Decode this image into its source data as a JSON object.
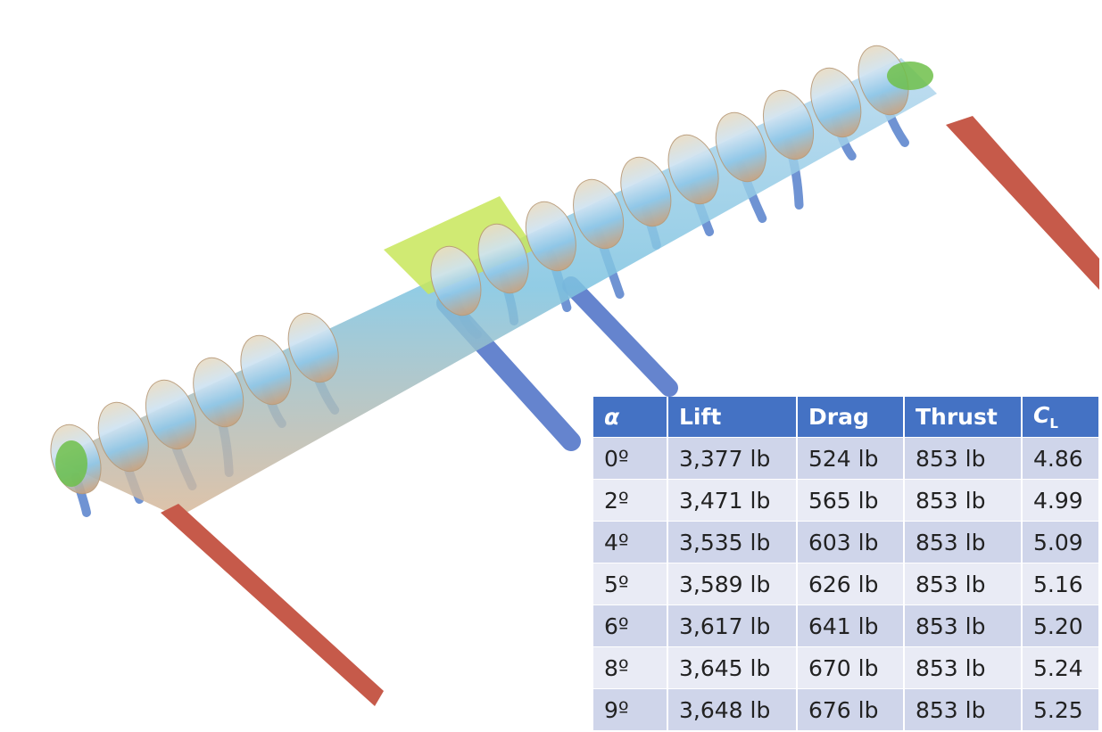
{
  "table": {
    "header": [
      "α",
      "Lift",
      "Drag",
      "Thrust",
      {
        "base": "C",
        "subscript": "L"
      }
    ],
    "rows": [
      [
        "0º",
        "3,377 lb",
        "524 lb",
        "853 lb",
        "4.86"
      ],
      [
        "2º",
        "3,471 lb",
        "565 lb",
        "853 lb",
        "4.99"
      ],
      [
        "4º",
        "3,535 lb",
        "603 lb",
        "853 lb",
        "5.09"
      ],
      [
        "5º",
        "3,589 lb",
        "626 lb",
        "853 lb",
        "5.16"
      ],
      [
        "6º",
        "3,617 lb",
        "641 lb",
        "853 lb",
        "5.20"
      ],
      [
        "8º",
        "3,645 lb",
        "670 lb",
        "853 lb",
        "5.24"
      ],
      [
        "9º",
        "3,648 lb",
        "676 lb",
        "853 lb",
        "5.25"
      ]
    ]
  }
}
